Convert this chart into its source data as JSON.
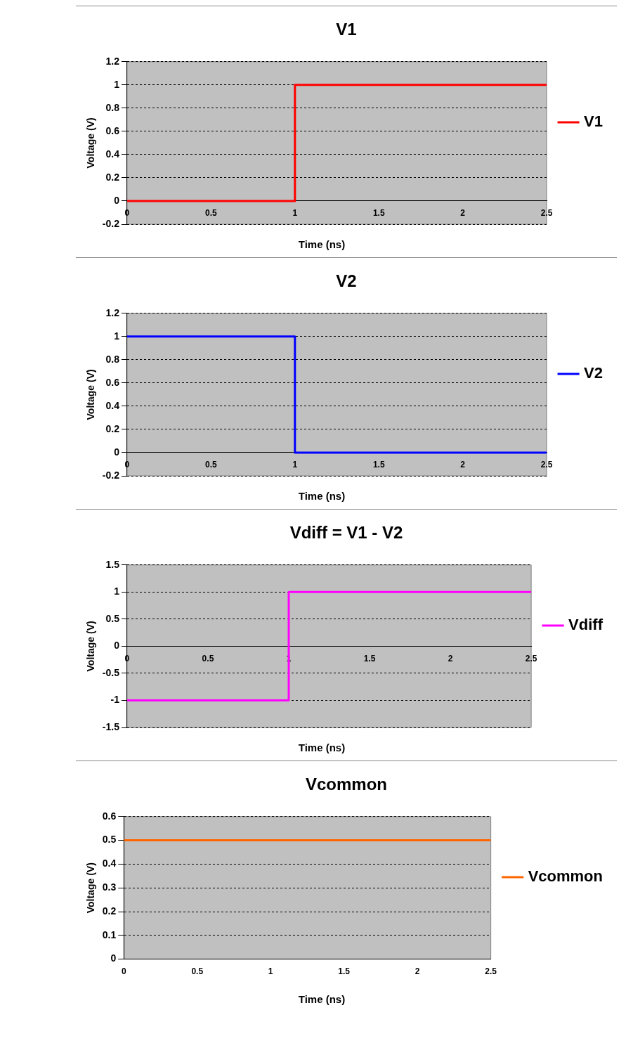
{
  "chart_data": [
    {
      "type": "line",
      "title": "V1",
      "xlabel": "Time (ns)",
      "ylabel": "Voltage (V)",
      "xlim": [
        0,
        2.5
      ],
      "xticks": [
        0,
        0.5,
        1,
        1.5,
        2,
        2.5
      ],
      "ylim": [
        -0.2,
        1.2
      ],
      "yticks": [
        -0.2,
        0,
        0.2,
        0.4,
        0.6,
        0.8,
        1,
        1.2
      ],
      "grid": "y",
      "legend": "right",
      "marker": "none",
      "series": [
        {
          "name": "V1",
          "color": "#ff0000",
          "x": [
            0,
            1,
            1,
            2.5
          ],
          "values": [
            0,
            0,
            1,
            1
          ]
        }
      ]
    },
    {
      "type": "line",
      "title": "V2",
      "xlabel": "Time (ns)",
      "ylabel": "Voltage (V)",
      "xlim": [
        0,
        2.5
      ],
      "xticks": [
        0,
        0.5,
        1,
        1.5,
        2,
        2.5
      ],
      "ylim": [
        -0.2,
        1.2
      ],
      "yticks": [
        -0.2,
        0,
        0.2,
        0.4,
        0.6,
        0.8,
        1,
        1.2
      ],
      "grid": "y",
      "legend": "right",
      "marker": "none",
      "series": [
        {
          "name": "V2",
          "color": "#0000ff",
          "x": [
            0,
            1,
            1,
            2.5
          ],
          "values": [
            1,
            1,
            0,
            0
          ]
        }
      ]
    },
    {
      "type": "line",
      "title": "Vdiff = V1 - V2",
      "xlabel": "Time (ns)",
      "ylabel": "Voltage (V)",
      "xlim": [
        0,
        2.5
      ],
      "xticks": [
        0,
        0.5,
        1,
        1.5,
        2,
        2.5
      ],
      "ylim": [
        -1.5,
        1.5
      ],
      "yticks": [
        -1.5,
        -1,
        -0.5,
        0,
        0.5,
        1,
        1.5
      ],
      "grid": "y",
      "legend": "right",
      "marker": "none",
      "series": [
        {
          "name": "Vdiff",
          "color": "#ff00ff",
          "x": [
            0,
            1,
            1,
            2.5
          ],
          "values": [
            -1,
            -1,
            1,
            1
          ]
        }
      ]
    },
    {
      "type": "line",
      "title": "Vcommon",
      "xlabel": "Time (ns)",
      "ylabel": "Voltage (V)",
      "xlim": [
        0,
        2.5
      ],
      "xticks": [
        0,
        0.5,
        1,
        1.5,
        2,
        2.5
      ],
      "ylim": [
        0,
        0.6
      ],
      "yticks": [
        0,
        0.1,
        0.2,
        0.3,
        0.4,
        0.5,
        0.6
      ],
      "grid": "y",
      "legend": "right",
      "marker": "none",
      "series": [
        {
          "name": "Vcommon",
          "color": "#ff6600",
          "x": [
            0,
            2.5
          ],
          "values": [
            0.5,
            0.5
          ]
        }
      ]
    }
  ]
}
